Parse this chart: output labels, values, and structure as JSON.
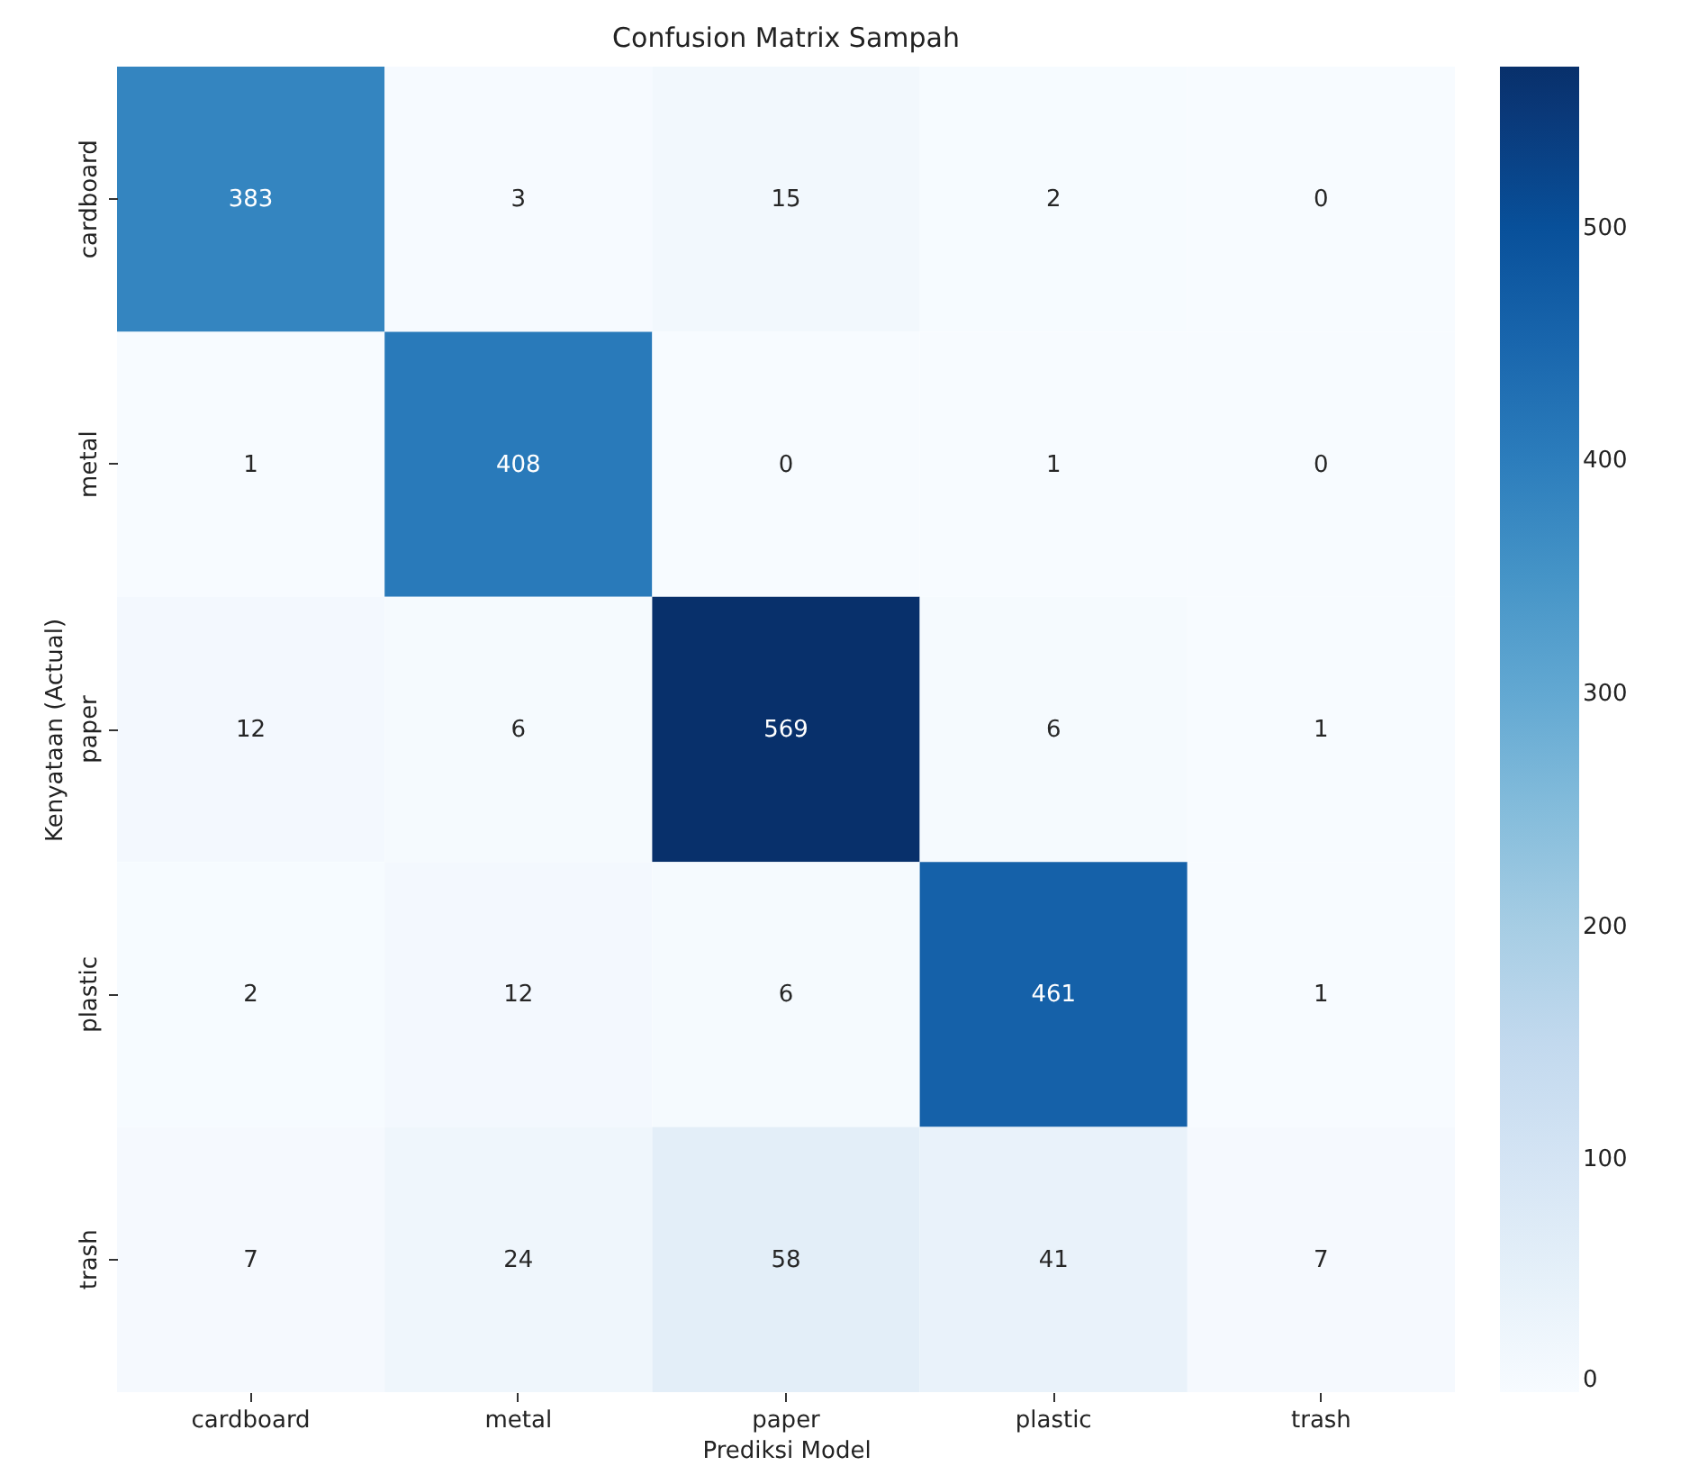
{
  "chart_data": {
    "type": "heatmap",
    "title": "Confusion Matrix Sampah",
    "xlabel": "Prediksi Model",
    "ylabel": "Kenyataan (Actual)",
    "categories": [
      "cardboard",
      "metal",
      "paper",
      "plastic",
      "trash"
    ],
    "y_categories": [
      "cardboard",
      "metal",
      "paper",
      "plastic",
      "trash"
    ],
    "cells": [
      [
        383,
        3,
        15,
        2,
        0
      ],
      [
        1,
        408,
        0,
        1,
        0
      ],
      [
        12,
        6,
        569,
        6,
        1
      ],
      [
        2,
        12,
        6,
        461,
        1
      ],
      [
        7,
        24,
        58,
        41,
        7
      ]
    ],
    "clim": [
      0,
      569
    ],
    "cticks": [
      0,
      100,
      200,
      300,
      400,
      500
    ],
    "data_labels": true
  }
}
